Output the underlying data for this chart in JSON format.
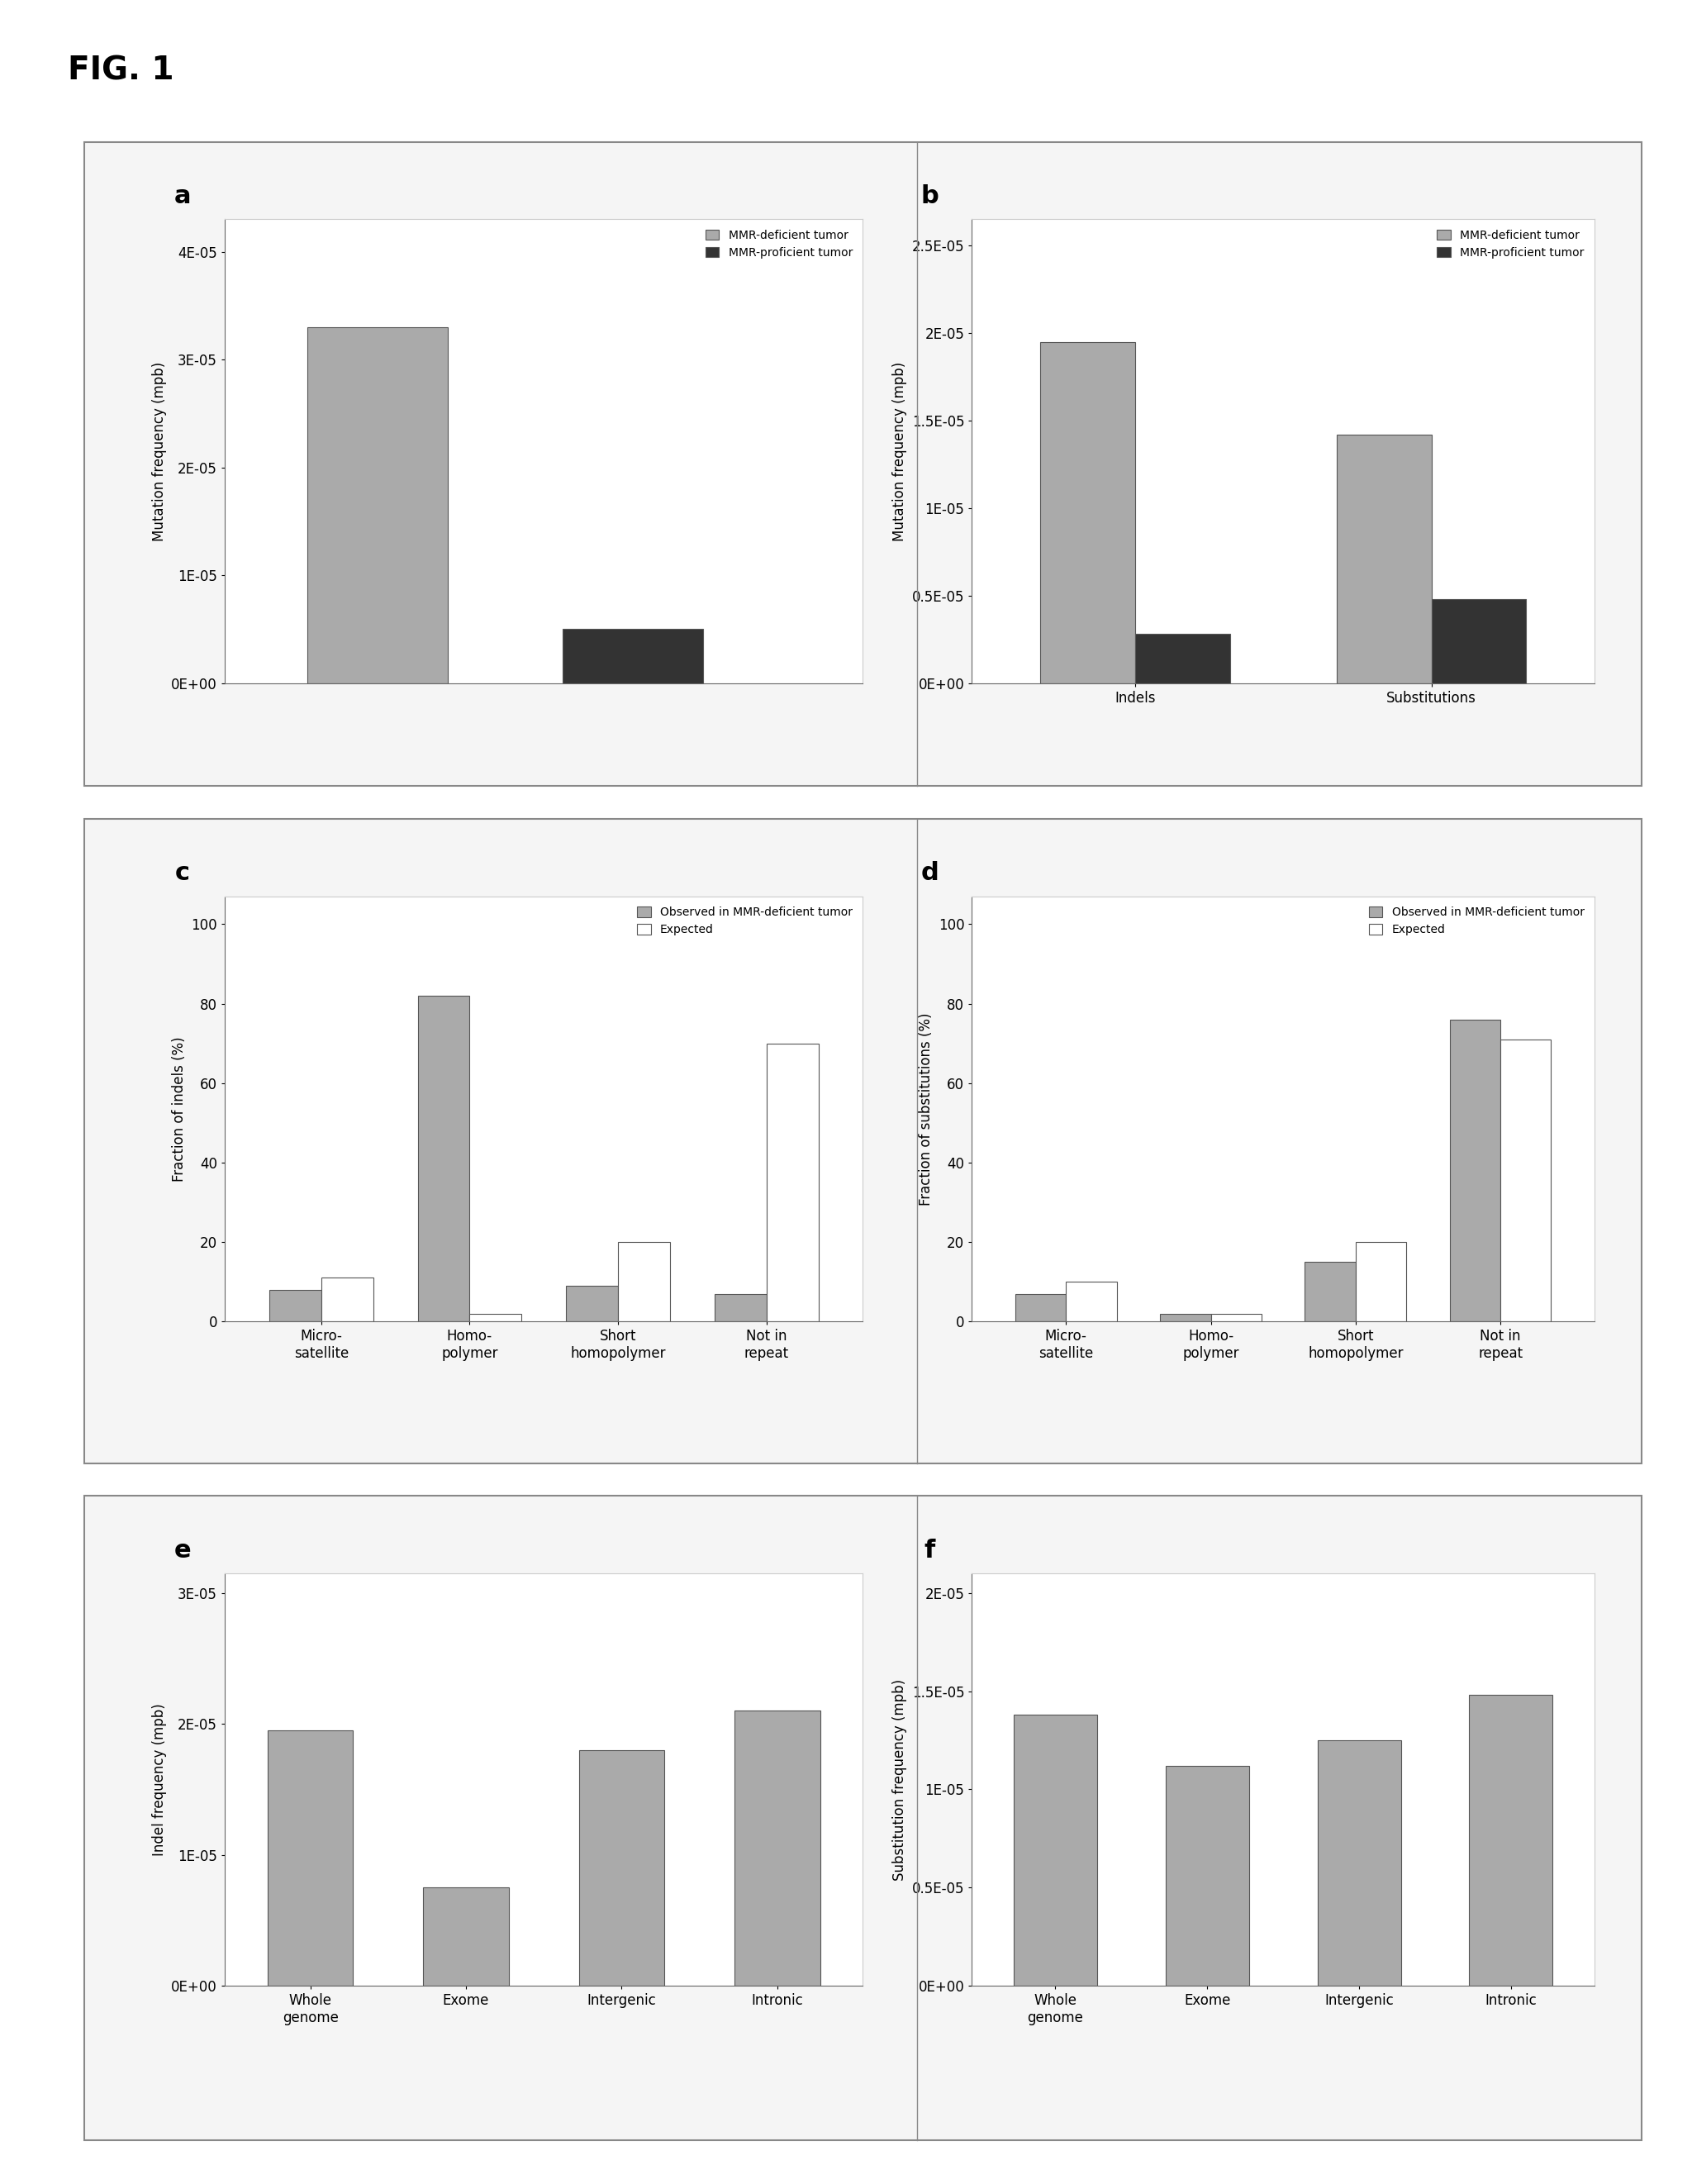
{
  "panel_a": {
    "label": "a",
    "bars": [
      3.3e-05,
      5e-06
    ],
    "colors": [
      "#aaaaaa",
      "#333333"
    ],
    "legend": [
      "MMR-deficient tumor",
      "MMR-proficient tumor"
    ],
    "ylabel": "Mutation frequency (mpb)",
    "yticks": [
      0,
      1e-05,
      2e-05,
      3e-05,
      4e-05
    ],
    "yticklabels": [
      "0E+00",
      "1E-05",
      "2E-05",
      "3E-05",
      "4E-05"
    ],
    "ylim": [
      0,
      4.3e-05
    ]
  },
  "panel_b": {
    "label": "b",
    "groups": [
      "Indels",
      "Substitutions"
    ],
    "bars_mmr_def": [
      1.95e-05,
      1.42e-05
    ],
    "bars_mmr_pro": [
      2.8e-06,
      4.8e-06
    ],
    "colors": [
      "#aaaaaa",
      "#333333"
    ],
    "legend": [
      "MMR-deficient tumor",
      "MMR-proficient tumor"
    ],
    "ylabel": "Mutation frequency (mpb)",
    "yticks": [
      0,
      5e-06,
      1e-05,
      1.5e-05,
      2e-05,
      2.5e-05
    ],
    "yticklabels": [
      "0E+00",
      "0.5E-05",
      "1E-05",
      "1.5E-05",
      "2E-05",
      "2.5E-05"
    ],
    "ylim": [
      0,
      2.65e-05
    ]
  },
  "panel_c": {
    "label": "c",
    "categories": [
      "Micro-\nsatellite",
      "Homo-\npolymer",
      "Short\nhomopolymer",
      "Not in\nrepeat"
    ],
    "observed": [
      8,
      82,
      9,
      7
    ],
    "expected": [
      11,
      2,
      20,
      70
    ],
    "color_obs": "#aaaaaa",
    "color_exp": "#ffffff",
    "legend": [
      "Observed in MMR-deficient tumor",
      "Expected"
    ],
    "ylabel": "Fraction of indels (%)",
    "yticks": [
      0,
      20,
      40,
      60,
      80,
      100
    ],
    "ylim": [
      0,
      107
    ]
  },
  "panel_d": {
    "label": "d",
    "categories": [
      "Micro-\nsatellite",
      "Homo-\npolymer",
      "Short\nhomopolymer",
      "Not in\nrepeat"
    ],
    "observed": [
      7,
      2,
      15,
      76
    ],
    "expected": [
      10,
      2,
      20,
      71
    ],
    "color_obs": "#aaaaaa",
    "color_exp": "#ffffff",
    "legend": [
      "Observed in MMR-deficient tumor",
      "Expected"
    ],
    "ylabel": "Fraction of substitutions (%)",
    "yticks": [
      0,
      20,
      40,
      60,
      80,
      100
    ],
    "ylim": [
      0,
      107
    ]
  },
  "panel_e": {
    "label": "e",
    "categories": [
      "Whole\ngenome",
      "Exome",
      "Intergenic",
      "Intronic"
    ],
    "values": [
      1.95e-05,
      7.5e-06,
      1.8e-05,
      2.1e-05
    ],
    "color": "#aaaaaa",
    "ylabel": "Indel frequency (mpb)",
    "yticks": [
      0,
      1e-05,
      2e-05,
      3e-05
    ],
    "yticklabels": [
      "0E+00",
      "1E-05",
      "2E-05",
      "3E-05"
    ],
    "ylim": [
      0,
      3.15e-05
    ]
  },
  "panel_f": {
    "label": "f",
    "categories": [
      "Whole\ngenome",
      "Exome",
      "Intergenic",
      "Intronic"
    ],
    "values": [
      1.38e-05,
      1.12e-05,
      1.25e-05,
      1.48e-05
    ],
    "color": "#aaaaaa",
    "ylabel": "Substitution frequency (mpb)",
    "yticks": [
      0,
      5e-06,
      1e-05,
      1.5e-05,
      2e-05
    ],
    "yticklabels": [
      "0E+00",
      "0.5E-05",
      "1E-05",
      "1.5E-05",
      "2E-05"
    ],
    "ylim": [
      0,
      2.1e-05
    ]
  },
  "fig_title": "FIG. 1",
  "fig_bg": "#ffffff",
  "box_bg": "#f5f5f5",
  "box_border": "#888888"
}
